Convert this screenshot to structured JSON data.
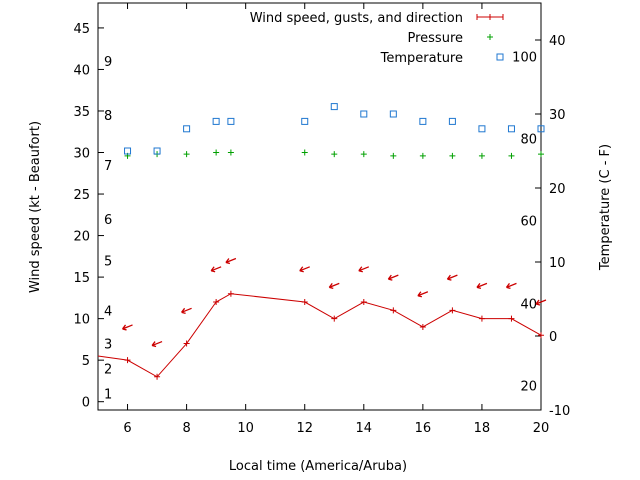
{
  "chart_data": {
    "type": "line",
    "title": "",
    "xlabel": "Local time (America/Aruba)",
    "ylabel_left": "Wind speed (kt - Beaufort)",
    "ylabel_right": "Temperature (C - F)",
    "xlim": [
      5,
      20
    ],
    "ylim_left": [
      -1,
      48
    ],
    "ylim_right": [
      -10,
      45
    ],
    "x_ticks": [
      6,
      8,
      10,
      12,
      14,
      16,
      18,
      20
    ],
    "y_left_ticks": [
      0,
      5,
      10,
      15,
      20,
      25,
      30,
      35,
      40,
      45
    ],
    "y_right_ticks": [
      -10,
      0,
      10,
      20,
      30,
      40
    ],
    "beaufort_labels": [
      {
        "label": "1",
        "y": 1
      },
      {
        "label": "2",
        "y": 4
      },
      {
        "label": "3",
        "y": 7
      },
      {
        "label": "4",
        "y": 11
      },
      {
        "label": "5",
        "y": 17
      },
      {
        "label": "6",
        "y": 22
      },
      {
        "label": "7",
        "y": 28.5
      },
      {
        "label": "8",
        "y": 34.5
      },
      {
        "label": "9",
        "y": 41
      }
    ],
    "fahrenheit_labels": [
      {
        "label": "20",
        "y": -6.7
      },
      {
        "label": "40",
        "y": 4.4
      },
      {
        "label": "60",
        "y": 15.6
      },
      {
        "label": "80",
        "y": 26.7
      },
      {
        "label": "100",
        "y": 37.8
      }
    ],
    "legend": {
      "placement": "top-right",
      "entries": [
        "Wind speed, gusts, and direction",
        "Pressure",
        "Temperature"
      ]
    },
    "series": [
      {
        "name": "Wind speed, gusts, and direction",
        "color": "#cc0000",
        "axis": "left",
        "x": [
          5,
          6,
          7,
          8,
          9,
          9.5,
          12,
          13,
          14,
          15,
          16,
          17,
          18,
          19,
          20
        ],
        "y": [
          5.5,
          5,
          3,
          7,
          12,
          13,
          12,
          10,
          12,
          11,
          9,
          11,
          10,
          10,
          8
        ],
        "arrows_y": [
          null,
          9,
          7,
          11,
          16,
          17,
          16,
          14,
          16,
          15,
          13,
          15,
          14,
          14,
          12
        ]
      },
      {
        "name": "Pressure",
        "color": "#00a000",
        "axis": "left",
        "x": [
          6,
          7,
          8,
          9,
          9.5,
          12,
          13,
          14,
          15,
          16,
          17,
          18,
          19,
          20
        ],
        "y": [
          29.6,
          29.8,
          29.8,
          30,
          30,
          30,
          29.8,
          29.8,
          29.6,
          29.6,
          29.6,
          29.6,
          29.6,
          29.8
        ]
      },
      {
        "name": "Temperature",
        "color": "#1f77d0",
        "axis": "right",
        "x": [
          6,
          7,
          8,
          9,
          9.5,
          12,
          13,
          14,
          15,
          16,
          17,
          18,
          19,
          20
        ],
        "y": [
          25,
          25,
          28,
          29,
          29,
          29,
          31,
          30,
          30,
          29,
          29,
          28,
          28,
          28
        ]
      }
    ]
  }
}
